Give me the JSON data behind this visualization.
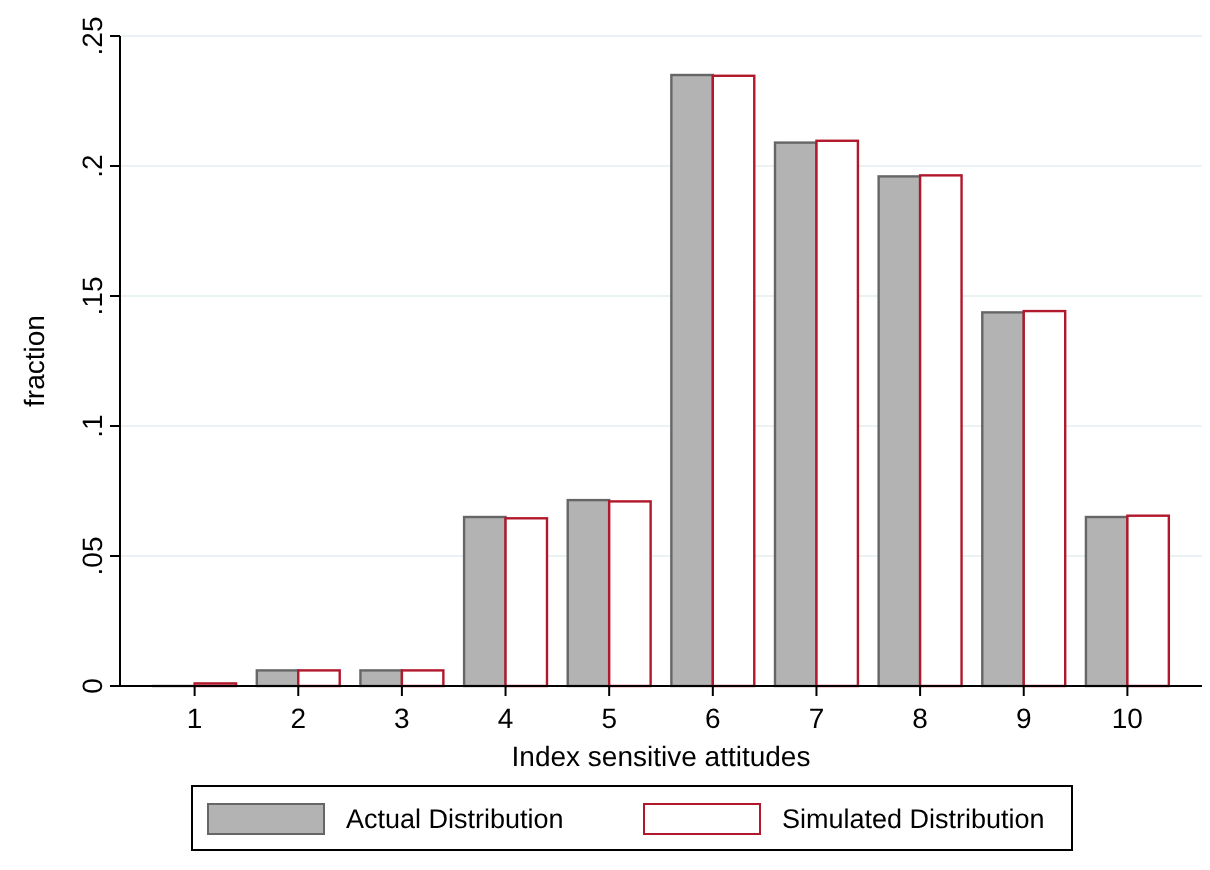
{
  "chart_data": {
    "type": "bar",
    "xlabel": "Index sensitive attitudes",
    "ylabel": "fraction",
    "categories": [
      "1",
      "2",
      "3",
      "4",
      "5",
      "6",
      "7",
      "8",
      "9",
      "10"
    ],
    "series": [
      {
        "name": "Actual Distribution",
        "color": "#b3b3b3",
        "values": [
          0,
          0.006,
          0.006,
          0.065,
          0.0715,
          0.235,
          0.209,
          0.196,
          0.1437,
          0.065
        ]
      },
      {
        "name": "Simulated Distribution",
        "color": "#ffffff",
        "values": [
          0.001,
          0.006,
          0.006,
          0.0645,
          0.071,
          0.2347,
          0.2097,
          0.1964,
          0.1442,
          0.0655
        ]
      }
    ],
    "ylim": [
      0,
      0.25
    ],
    "yticks": [
      0,
      {
        "value": 0.05,
        "label": ".05"
      },
      {
        "value": 0.1,
        "label": ".1"
      },
      {
        "value": 0.15,
        "label": ".15"
      },
      {
        "value": 0.2,
        "label": ".2"
      },
      {
        "value": 0.25,
        "label": ".25"
      }
    ],
    "grid": "y",
    "legend": "bottom"
  }
}
